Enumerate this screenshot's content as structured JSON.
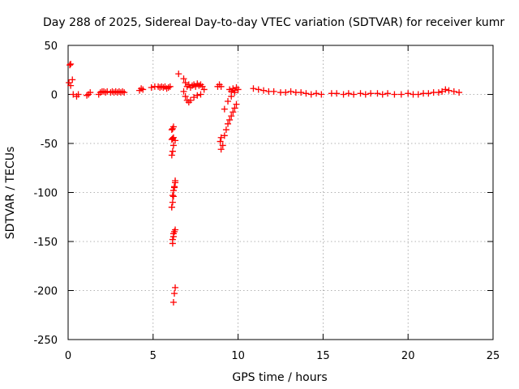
{
  "chart_data": {
    "type": "scatter",
    "title": "Day 288 of 2025, Sidereal Day-to-day VTEC variation (SDTVAR) for receiver kumr",
    "xlabel": "GPS time / hours",
    "ylabel": "SDTVAR / TECUs",
    "xlim": [
      0,
      25
    ],
    "ylim": [
      -250,
      50
    ],
    "xticks": [
      0,
      5,
      10,
      15,
      20,
      25
    ],
    "yticks": [
      -250,
      -200,
      -150,
      -100,
      -50,
      0,
      50
    ],
    "xtick_labels": [
      "0",
      "5",
      "10",
      "15",
      "20",
      "25"
    ],
    "ytick_labels": [
      "-250",
      "-200",
      "-150",
      "-100",
      "-50",
      "0",
      "50"
    ],
    "grid": true,
    "marker": "plus",
    "color": "#ff0000",
    "series": [
      {
        "name": "SDTVAR",
        "x": [
          0.1,
          0.15,
          0.25,
          0.05,
          0.15,
          0.3,
          0.5,
          0.6,
          1.1,
          1.2,
          1.3,
          1.8,
          1.9,
          2.0,
          2.1,
          2.2,
          2.3,
          2.5,
          2.6,
          2.7,
          2.8,
          2.9,
          3.0,
          3.1,
          3.2,
          3.3,
          4.2,
          4.3,
          4.4,
          4.9,
          5.1,
          5.3,
          5.4,
          5.5,
          5.6,
          5.7,
          5.8,
          5.9,
          6.0,
          6.5,
          6.8,
          6.9,
          7.0,
          7.1,
          7.2,
          7.3,
          7.4,
          7.5,
          7.6,
          7.7,
          7.8,
          7.9,
          6.8,
          6.9,
          7.0,
          7.1,
          7.2,
          7.4,
          7.6,
          7.8,
          8.0,
          8.8,
          8.9,
          9.0,
          9.5,
          9.6,
          9.7,
          9.8,
          9.9,
          10.0,
          9.2,
          9.4,
          9.6,
          9.8,
          9.0,
          9.1,
          9.2,
          9.3,
          9.4,
          9.5,
          9.6,
          9.7,
          9.8,
          9.9,
          8.95,
          9.0,
          6.1,
          6.15,
          6.2,
          6.3,
          6.1,
          6.15,
          6.2,
          6.1,
          6.15,
          6.2,
          6.1,
          6.15,
          6.2,
          6.25,
          6.3,
          6.15,
          6.2,
          6.25,
          6.3,
          6.2,
          6.25,
          6.3,
          6.1,
          6.15,
          6.2,
          6.25,
          6.3,
          6.15,
          6.2,
          10.9,
          11.2,
          11.5,
          11.8,
          12.1,
          12.5,
          12.8,
          13.1,
          13.4,
          13.7,
          14.0,
          14.3,
          14.6,
          14.9,
          15.5,
          15.8,
          16.2,
          16.5,
          16.8,
          17.2,
          17.5,
          17.8,
          18.2,
          18.5,
          18.8,
          19.2,
          19.6,
          20.0,
          20.3,
          20.6,
          20.9,
          21.2,
          21.5,
          21.8,
          22.0,
          22.2,
          22.4,
          22.7,
          23.0
        ],
        "y": [
          30,
          31,
          15,
          12,
          9,
          0,
          -2,
          0,
          -1,
          0,
          2,
          0,
          2,
          3,
          3,
          2,
          3,
          2,
          3,
          2,
          3,
          2,
          3,
          2,
          3,
          2,
          4,
          6,
          5,
          7,
          8,
          8,
          7,
          8,
          7,
          8,
          6,
          7,
          8,
          21,
          16,
          12,
          8,
          10,
          7,
          9,
          10,
          8,
          11,
          9,
          10,
          8,
          3,
          -2,
          -6,
          -8,
          -6,
          -3,
          -1,
          0,
          5,
          8,
          10,
          8,
          5,
          3,
          6,
          4,
          7,
          5,
          -15,
          -7,
          -2,
          2,
          -56,
          -52,
          -42,
          -36,
          -30,
          -26,
          -22,
          -18,
          -14,
          -10,
          -48,
          -44,
          -62,
          -58,
          -52,
          -47,
          -46,
          -45,
          -44,
          -36,
          -35,
          -33,
          -115,
          -110,
          -104,
          -95,
          -88,
          -152,
          -145,
          -140,
          -138,
          -212,
          -203,
          -197,
          -115,
          -103,
          -98,
          -94,
          -90,
          -148,
          -142,
          6,
          5,
          4,
          3,
          3,
          2,
          2,
          3,
          2,
          2,
          1,
          0,
          1,
          0,
          1,
          1,
          0,
          1,
          0,
          1,
          0,
          1,
          1,
          0,
          1,
          0,
          0,
          1,
          0,
          0,
          1,
          1,
          2,
          2,
          3,
          5,
          4,
          3,
          2
        ]
      }
    ]
  }
}
